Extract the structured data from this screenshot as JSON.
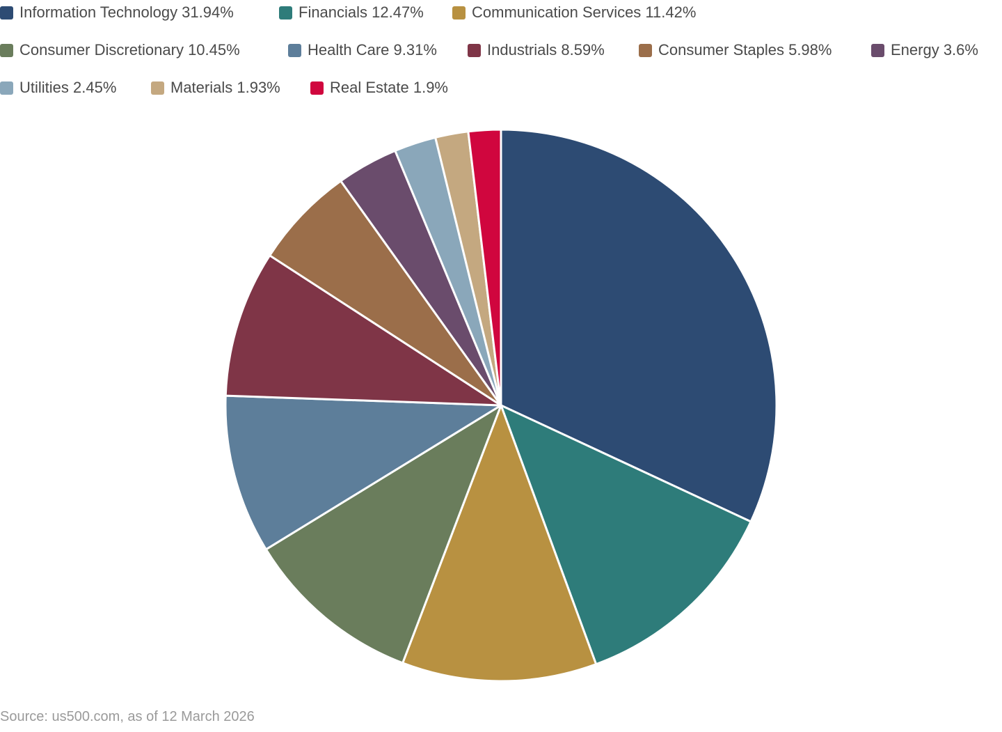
{
  "chart_data": {
    "type": "pie",
    "title": "",
    "categories": [
      "Information Technology",
      "Financials",
      "Communication Services",
      "Consumer Discretionary",
      "Health Care",
      "Industrials",
      "Consumer Staples",
      "Energy",
      "Utilities",
      "Materials",
      "Real Estate"
    ],
    "values": [
      31.94,
      12.47,
      11.42,
      10.45,
      9.31,
      8.59,
      5.98,
      3.6,
      2.45,
      1.93,
      1.9
    ],
    "unit": "%",
    "colors": [
      "#2d4b73",
      "#2e7c7a",
      "#b89141",
      "#6a7d5c",
      "#5d7e9a",
      "#7f3547",
      "#9b6e4a",
      "#6a4c6c",
      "#8aa7ba",
      "#c4a880",
      "#d0063e"
    ],
    "legend_position": "top",
    "start_angle": "top (12 o'clock), clockwise"
  },
  "legend": {
    "items": [
      {
        "label": "Information Technology 31.94%",
        "color": "#2d4b73"
      },
      {
        "label": "Financials 12.47%",
        "color": "#2e7c7a"
      },
      {
        "label": "Communication Services 11.42%",
        "color": "#b89141"
      },
      {
        "label": "Consumer Discretionary 10.45%",
        "color": "#6a7d5c"
      },
      {
        "label": "Health Care 9.31%",
        "color": "#5d7e9a"
      },
      {
        "label": "Industrials 8.59%",
        "color": "#7f3547"
      },
      {
        "label": "Consumer Staples 5.98%",
        "color": "#9b6e4a"
      },
      {
        "label": "Energy 3.6%",
        "color": "#6a4c6c"
      },
      {
        "label": "Utilities 2.45%",
        "color": "#8aa7ba"
      },
      {
        "label": "Materials 1.93%",
        "color": "#c4a880"
      },
      {
        "label": "Real Estate 1.9%",
        "color": "#d0063e"
      }
    ]
  },
  "footer": {
    "source": "Source: us500.com, as of 12 March 2026"
  }
}
